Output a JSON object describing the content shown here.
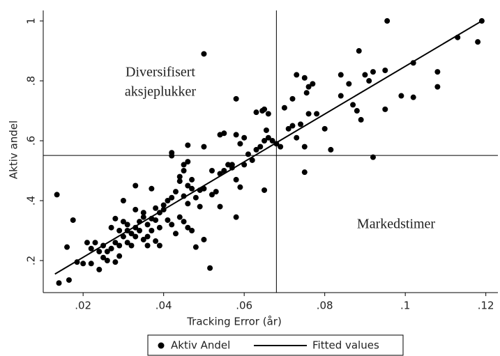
{
  "chart_data": {
    "type": "scatter",
    "x_label": "Tracking Error (år)",
    "y_label": "Aktiv andel",
    "xlim": [
      0.0101,
      0.123
    ],
    "ylim": [
      0.093,
      1.035
    ],
    "xticks": [
      {
        "value": 0.02,
        "label": ".02"
      },
      {
        "value": 0.04,
        "label": ".04"
      },
      {
        "value": 0.06,
        "label": ".06"
      },
      {
        "value": 0.08,
        "label": ".08"
      },
      {
        "value": 0.1,
        "label": ".1"
      },
      {
        "value": 0.12,
        "label": ".12"
      }
    ],
    "yticks": [
      {
        "value": 0.2,
        "label": ".2"
      },
      {
        "value": 0.4,
        "label": ".4"
      },
      {
        "value": 0.6,
        "label": ".6"
      },
      {
        "value": 0.8,
        "label": ".8"
      },
      1
    ],
    "reference_lines": {
      "x": 0.068,
      "y": 0.551
    },
    "annotations": [
      "Diversifisert",
      "aksjeplukker",
      "Markedstimer"
    ],
    "legend": "bottom",
    "series": [
      {
        "name": "Aktiv Andel",
        "type": "scatter",
        "color": "#000000",
        "x": [
          0.0135,
          0.014,
          0.016,
          0.0165,
          0.0175,
          0.0185,
          0.05,
          0.0515,
          0.0955,
          0.119,
          0.118,
          0.113,
          0.092,
          0.075,
          0.0815,
          0.065,
          0.07,
          0.072,
          0.073,
          0.075,
          0.076,
          0.0755,
          0.077,
          0.076,
          0.078,
          0.075,
          0.072,
          0.071,
          0.073,
          0.068,
          0.069,
          0.074,
          0.08,
          0.084,
          0.086,
          0.087,
          0.088,
          0.0885,
          0.089,
          0.09,
          0.091,
          0.092,
          0.095,
          0.095,
          0.099,
          0.102,
          0.102,
          0.108,
          0.108,
          0.084,
          0.058,
          0.058,
          0.06,
          0.059,
          0.06,
          0.057,
          0.058,
          0.059,
          0.061,
          0.063,
          0.064,
          0.0645,
          0.063,
          0.065,
          0.066,
          0.0655,
          0.066,
          0.067,
          0.065,
          0.062,
          0.055,
          0.056,
          0.055,
          0.054,
          0.054,
          0.053,
          0.052,
          0.058,
          0.057,
          0.05,
          0.05,
          0.049,
          0.048,
          0.049,
          0.05,
          0.048,
          0.047,
          0.046,
          0.046,
          0.045,
          0.045,
          0.044,
          0.044,
          0.043,
          0.045,
          0.046,
          0.047,
          0.046,
          0.045,
          0.044,
          0.043,
          0.046,
          0.042,
          0.042,
          0.042,
          0.041,
          0.04,
          0.04,
          0.041,
          0.042,
          0.039,
          0.038,
          0.038,
          0.037,
          0.039,
          0.039,
          0.038,
          0.037,
          0.037,
          0.036,
          0.035,
          0.035,
          0.034,
          0.034,
          0.036,
          0.036,
          0.035,
          0.033,
          0.033,
          0.033,
          0.032,
          0.031,
          0.031,
          0.03,
          0.03,
          0.03,
          0.029,
          0.029,
          0.028,
          0.028,
          0.027,
          0.027,
          0.026,
          0.026,
          0.025,
          0.025,
          0.024,
          0.024,
          0.023,
          0.022,
          0.022,
          0.021,
          0.02,
          0.028,
          0.029,
          0.032,
          0.033,
          0.031,
          0.054,
          0.052,
          0.047
        ],
        "values": [
          0.42,
          0.125,
          0.245,
          0.135,
          0.335,
          0.195,
          0.89,
          0.175,
          1.0,
          1.0,
          0.93,
          0.945,
          0.545,
          0.495,
          0.57,
          0.435,
          0.71,
          0.74,
          0.82,
          0.81,
          0.78,
          0.76,
          0.79,
          0.69,
          0.69,
          0.58,
          0.65,
          0.64,
          0.61,
          0.59,
          0.58,
          0.655,
          0.64,
          0.82,
          0.79,
          0.72,
          0.7,
          0.9,
          0.67,
          0.82,
          0.8,
          0.83,
          0.835,
          0.705,
          0.75,
          0.86,
          0.745,
          0.83,
          0.78,
          0.75,
          0.74,
          0.62,
          0.61,
          0.59,
          0.52,
          0.52,
          0.47,
          0.445,
          0.555,
          0.57,
          0.58,
          0.7,
          0.695,
          0.705,
          0.69,
          0.635,
          0.61,
          0.6,
          0.6,
          0.535,
          0.625,
          0.52,
          0.5,
          0.49,
          0.38,
          0.43,
          0.42,
          0.345,
          0.51,
          0.58,
          0.44,
          0.435,
          0.41,
          0.38,
          0.27,
          0.245,
          0.3,
          0.585,
          0.53,
          0.52,
          0.5,
          0.48,
          0.465,
          0.43,
          0.415,
          0.39,
          0.44,
          0.45,
          0.33,
          0.345,
          0.29,
          0.31,
          0.55,
          0.56,
          0.41,
          0.4,
          0.385,
          0.37,
          0.335,
          0.32,
          0.36,
          0.375,
          0.335,
          0.34,
          0.31,
          0.25,
          0.265,
          0.44,
          0.3,
          0.32,
          0.36,
          0.345,
          0.33,
          0.3,
          0.28,
          0.25,
          0.27,
          0.45,
          0.37,
          0.31,
          0.29,
          0.32,
          0.26,
          0.4,
          0.33,
          0.28,
          0.3,
          0.25,
          0.34,
          0.26,
          0.31,
          0.24,
          0.2,
          0.23,
          0.25,
          0.21,
          0.17,
          0.23,
          0.26,
          0.24,
          0.19,
          0.26,
          0.19,
          0.195,
          0.215,
          0.25,
          0.28,
          0.3,
          0.62,
          0.5,
          0.47
        ]
      },
      {
        "name": "Fitted values",
        "type": "line",
        "color": "#000000",
        "x": [
          0.013,
          0.119
        ],
        "values": [
          0.155,
          1.0
        ]
      }
    ]
  }
}
